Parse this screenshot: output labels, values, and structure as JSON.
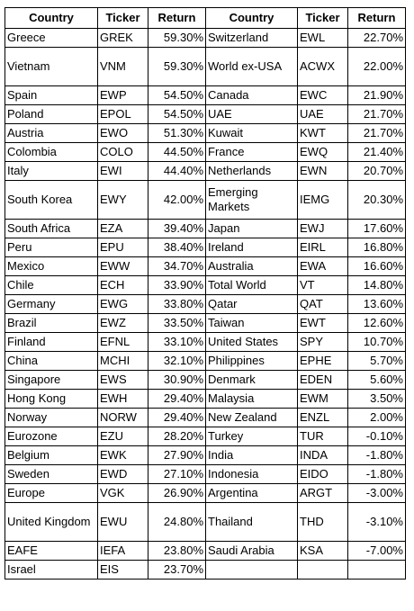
{
  "headers": [
    "Country",
    "Ticker",
    "Return",
    "Country",
    "Ticker",
    "Return"
  ],
  "rows": [
    {
      "tall": false,
      "l": [
        "Greece",
        "GREK",
        "59.30%"
      ],
      "r": [
        "Switzerland",
        "EWL",
        "22.70%"
      ]
    },
    {
      "tall": true,
      "l": [
        "Vietnam",
        "VNM",
        "59.30%"
      ],
      "r": [
        "World ex-USA",
        "ACWX",
        "22.00%"
      ]
    },
    {
      "tall": false,
      "l": [
        "Spain",
        "EWP",
        "54.50%"
      ],
      "r": [
        "Canada",
        "EWC",
        "21.90%"
      ]
    },
    {
      "tall": false,
      "l": [
        "Poland",
        "EPOL",
        "54.50%"
      ],
      "r": [
        "UAE",
        "UAE",
        "21.70%"
      ]
    },
    {
      "tall": false,
      "l": [
        "Austria",
        "EWO",
        "51.30%"
      ],
      "r": [
        "Kuwait",
        "KWT",
        "21.70%"
      ]
    },
    {
      "tall": false,
      "l": [
        "Colombia",
        "COLO",
        "44.50%"
      ],
      "r": [
        "France",
        "EWQ",
        "21.40%"
      ]
    },
    {
      "tall": false,
      "l": [
        "Italy",
        "EWI",
        "44.40%"
      ],
      "r": [
        "Netherlands",
        "EWN",
        "20.70%"
      ]
    },
    {
      "tall": true,
      "l": [
        "South Korea",
        "EWY",
        "42.00%"
      ],
      "r": [
        "Emerging Markets",
        "IEMG",
        "20.30%"
      ]
    },
    {
      "tall": false,
      "l": [
        "South Africa",
        "EZA",
        "39.40%"
      ],
      "r": [
        "Japan",
        "EWJ",
        "17.60%"
      ]
    },
    {
      "tall": false,
      "l": [
        "Peru",
        "EPU",
        "38.40%"
      ],
      "r": [
        "Ireland",
        "EIRL",
        "16.80%"
      ]
    },
    {
      "tall": false,
      "l": [
        "Mexico",
        "EWW",
        "34.70%"
      ],
      "r": [
        "Australia",
        "EWA",
        "16.60%"
      ]
    },
    {
      "tall": false,
      "l": [
        "Chile",
        "ECH",
        "33.90%"
      ],
      "r": [
        "Total World",
        "VT",
        "14.80%"
      ]
    },
    {
      "tall": false,
      "l": [
        "Germany",
        "EWG",
        "33.80%"
      ],
      "r": [
        "Qatar",
        "QAT",
        "13.60%"
      ]
    },
    {
      "tall": false,
      "l": [
        "Brazil",
        "EWZ",
        "33.50%"
      ],
      "r": [
        "Taiwan",
        "EWT",
        "12.60%"
      ]
    },
    {
      "tall": false,
      "l": [
        "Finland",
        "EFNL",
        "33.10%"
      ],
      "r": [
        "United States",
        "SPY",
        "10.70%"
      ]
    },
    {
      "tall": false,
      "l": [
        "China",
        "MCHI",
        "32.10%"
      ],
      "r": [
        "Philippines",
        "EPHE",
        "5.70%"
      ]
    },
    {
      "tall": false,
      "l": [
        "Singapore",
        "EWS",
        "30.90%"
      ],
      "r": [
        "Denmark",
        "EDEN",
        "5.60%"
      ]
    },
    {
      "tall": false,
      "l": [
        "Hong Kong",
        "EWH",
        "29.40%"
      ],
      "r": [
        "Malaysia",
        "EWM",
        "3.50%"
      ]
    },
    {
      "tall": false,
      "l": [
        "Norway",
        "NORW",
        "29.40%"
      ],
      "r": [
        "New Zealand",
        "ENZL",
        "2.00%"
      ]
    },
    {
      "tall": false,
      "l": [
        "Eurozone",
        "EZU",
        "28.20%"
      ],
      "r": [
        "Turkey",
        "TUR",
        "-0.10%"
      ]
    },
    {
      "tall": false,
      "l": [
        "Belgium",
        "EWK",
        "27.90%"
      ],
      "r": [
        "India",
        "INDA",
        "-1.80%"
      ]
    },
    {
      "tall": false,
      "l": [
        "Sweden",
        "EWD",
        "27.10%"
      ],
      "r": [
        "Indonesia",
        "EIDO",
        "-1.80%"
      ]
    },
    {
      "tall": false,
      "l": [
        "Europe",
        "VGK",
        "26.90%"
      ],
      "r": [
        "Argentina",
        "ARGT",
        "-3.00%"
      ]
    },
    {
      "tall": true,
      "l": [
        "United Kingdom",
        "EWU",
        "24.80%"
      ],
      "r": [
        "Thailand",
        "THD",
        "-3.10%"
      ]
    },
    {
      "tall": false,
      "l": [
        "EAFE",
        "IEFA",
        "23.80%"
      ],
      "r": [
        "Saudi Arabia",
        "KSA",
        "-7.00%"
      ]
    },
    {
      "tall": false,
      "l": [
        "Israel",
        "EIS",
        "23.70%"
      ],
      "r": [
        "",
        "",
        ""
      ]
    }
  ]
}
